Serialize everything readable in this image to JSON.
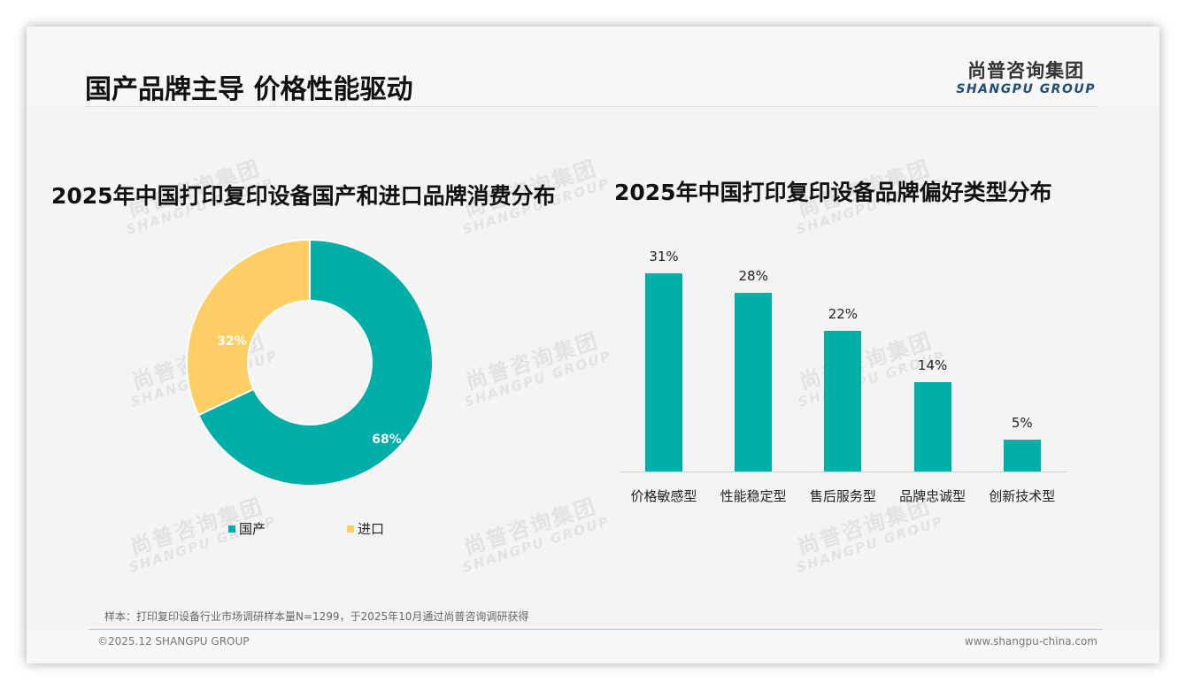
{
  "header": {
    "title": "国产品牌主导 价格性能驱动",
    "logo_cn": "尚普咨询集团",
    "logo_en": "SHANGPU GROUP"
  },
  "watermark": {
    "cn": "尚普咨询集团",
    "en": "SHANGPU GROUP"
  },
  "colors": {
    "teal": "#00aea8",
    "yellow": "#ffcf66",
    "logo_blue": "#1f4e79"
  },
  "left_chart": {
    "title": "2025年中国打印复印设备国产和进口品牌消费分布",
    "slices": [
      {
        "label": "国产",
        "value": 68,
        "display": "68%",
        "color": "#00aea8"
      },
      {
        "label": "进口",
        "value": 32,
        "display": "32%",
        "color": "#ffcf66"
      }
    ]
  },
  "right_chart": {
    "title": "2025年中国打印复印设备品牌偏好类型分布",
    "bars": [
      {
        "label": "价格敏感型",
        "value": 31,
        "display": "31%"
      },
      {
        "label": "性能稳定型",
        "value": 28,
        "display": "28%"
      },
      {
        "label": "售后服务型",
        "value": 22,
        "display": "22%"
      },
      {
        "label": "品牌忠诚型",
        "value": 14,
        "display": "14%"
      },
      {
        "label": "创新技术型",
        "value": 5,
        "display": "5%"
      }
    ]
  },
  "footer": {
    "note": "样本：打印复印设备行业市场调研样本量N=1299，于2025年10月通过尚普咨询调研获得",
    "copyright": "©2025.12 SHANGPU GROUP",
    "website": "www.shangpu-china.com"
  },
  "chart_data": [
    {
      "type": "pie",
      "title": "2025年中国打印复印设备国产和进口品牌消费分布",
      "categories": [
        "国产",
        "进口"
      ],
      "values": [
        68,
        32
      ],
      "unit": "%",
      "donut": true,
      "legend_position": "bottom"
    },
    {
      "type": "bar",
      "title": "2025年中国打印复印设备品牌偏好类型分布",
      "categories": [
        "价格敏感型",
        "性能稳定型",
        "售后服务型",
        "品牌忠诚型",
        "创新技术型"
      ],
      "values": [
        31,
        28,
        22,
        14,
        5
      ],
      "unit": "%",
      "xlabel": "",
      "ylabel": "",
      "grid": false,
      "data_labels": true
    }
  ]
}
